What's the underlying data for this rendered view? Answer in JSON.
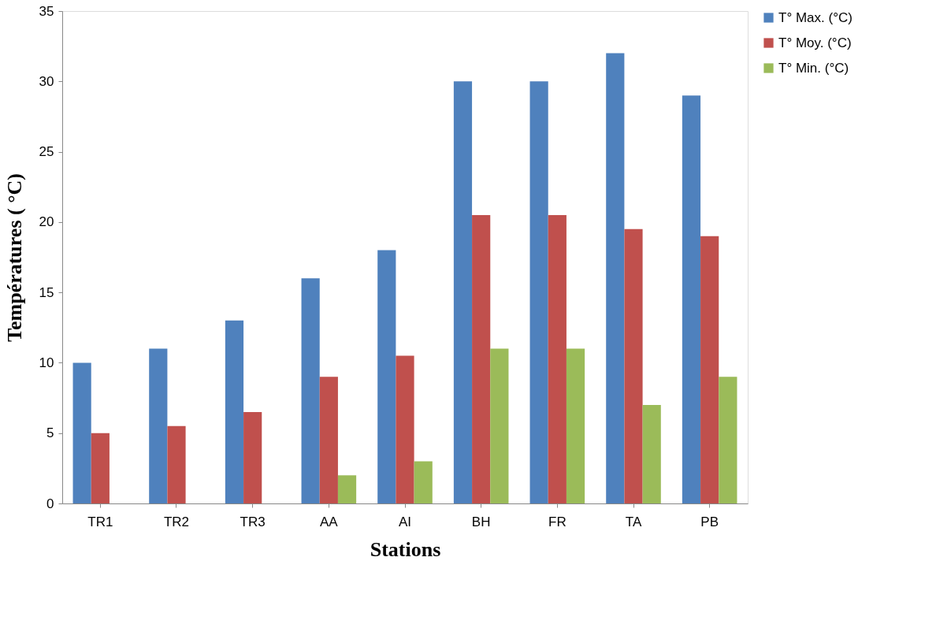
{
  "chart_data": {
    "type": "bar",
    "xlabel": "Stations",
    "ylabel": "Températures ( °C)",
    "categories": [
      "TR1",
      "TR2",
      "TR3",
      "AA",
      "AI",
      "BH",
      "FR",
      "TA",
      "PB"
    ],
    "series": [
      {
        "name": "T° Max. (°C)",
        "color": "#4f81bd",
        "values": [
          10,
          11,
          13,
          16,
          18,
          30,
          30,
          32,
          29
        ]
      },
      {
        "name": "T° Moy. (°C)",
        "color": "#c0504d",
        "values": [
          5,
          5.5,
          6.5,
          9,
          10.5,
          20.5,
          20.5,
          19.5,
          19
        ]
      },
      {
        "name": "T° Min. (°C)",
        "color": "#9bbb59",
        "values": [
          null,
          null,
          null,
          2,
          3,
          11,
          11,
          7,
          9
        ]
      }
    ],
    "ylim": [
      0,
      35
    ],
    "yticks": [
      0,
      5,
      10,
      15,
      20,
      25,
      30,
      35
    ],
    "grid": false,
    "legend": "right"
  }
}
